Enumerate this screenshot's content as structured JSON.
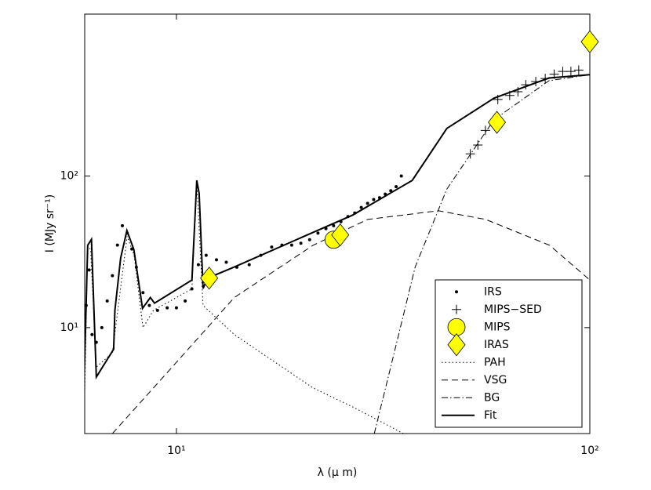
{
  "chart_data": {
    "type": "line",
    "xlabel": "λ (μ m)",
    "ylabel": "I (MJy sr⁻¹)",
    "log_x": true,
    "log_y": true,
    "xlim": [
      6,
      100
    ],
    "ylim": [
      2,
      1170
    ],
    "xticks": [
      {
        "value": 10,
        "label": "10¹"
      },
      {
        "value": 100,
        "label": "10²"
      }
    ],
    "yticks": [
      {
        "value": 10,
        "label": "10¹"
      },
      {
        "value": 100,
        "label": "10²"
      }
    ],
    "legend": "lower right",
    "series": [
      {
        "name": "IRS",
        "style": "dot",
        "color": "#000000",
        "x": [
          6.05,
          6.15,
          6.25,
          6.4,
          6.6,
          6.8,
          7.0,
          7.2,
          7.4,
          7.6,
          7.8,
          8.0,
          8.3,
          8.6,
          9.0,
          9.5,
          10.0,
          10.5,
          10.9,
          11.3,
          11.8,
          12.5,
          13.2,
          14,
          15,
          16,
          17,
          18,
          19,
          20,
          21,
          22,
          23,
          24,
          25,
          26,
          27,
          28,
          29,
          30,
          31,
          32,
          33,
          34,
          35
        ],
        "values": [
          14,
          24,
          9,
          8,
          10,
          15,
          22,
          35,
          47,
          42,
          33,
          25,
          17,
          14,
          13,
          13.5,
          13.5,
          15,
          18,
          26,
          30,
          28,
          27,
          25,
          26,
          30,
          34,
          35,
          35,
          36,
          38,
          42,
          45,
          47,
          50,
          54,
          57,
          62,
          66,
          70,
          72,
          76,
          80,
          85,
          100
        ]
      },
      {
        "name": "MIPS−SED",
        "style": "plus",
        "color": "#000000",
        "x": [
          51.4,
          53.6,
          55.9,
          59.9,
          64,
          67,
          70,
          74,
          78,
          82,
          86,
          90,
          94
        ],
        "values": [
          140,
          160,
          200,
          320,
          340,
          360,
          400,
          420,
          440,
          470,
          490,
          490,
          500
        ]
      },
      {
        "name": "MIPS",
        "style": "circle",
        "color": "#ffff00",
        "x": [
          24
        ],
        "values": [
          38
        ]
      },
      {
        "name": "IRAS",
        "style": "diamond",
        "color": "#ffff00",
        "x": [
          12,
          24.9,
          59.6,
          100
        ],
        "values": [
          21.2,
          40.9,
          226,
          769
        ]
      },
      {
        "name": "PAH",
        "style": "dotted",
        "color": "#000000",
        "x": [
          6,
          6.1,
          6.2,
          6.4,
          7.0,
          7.6,
          7.9,
          8.3,
          8.8,
          10.9,
          11.2,
          11.6,
          13.8,
          21.4,
          26.7,
          35.4
        ],
        "values": [
          3.7,
          34,
          33,
          5.5,
          6.8,
          40,
          30,
          10,
          13,
          18,
          90,
          14,
          9,
          4,
          3,
          2
        ]
      },
      {
        "name": "VSG",
        "style": "dashed",
        "color": "#000000",
        "x": [
          7.0,
          10,
          13.8,
          21.4,
          29,
          43,
          56,
          80,
          100
        ],
        "values": [
          2.0,
          5.9,
          15.8,
          34.9,
          51.7,
          59,
          51.7,
          34.9,
          20.6
        ]
      },
      {
        "name": "BG",
        "style": "dashdot",
        "color": "#000000",
        "x": [
          30.1,
          33.2,
          37.8,
          45.1,
          58.6,
          79.6,
          100
        ],
        "values": [
          2.0,
          5.9,
          25.1,
          82,
          235,
          425,
          466
        ]
      },
      {
        "name": "Fit",
        "style": "solid",
        "color": "#000000",
        "x": [
          5.97,
          6.1,
          6.23,
          6.4,
          7.05,
          7.1,
          7.33,
          7.59,
          7.89,
          8.28,
          8.65,
          8.85,
          10.9,
          11.2,
          11.35,
          11.6,
          11.9,
          13.8,
          21.4,
          26.7,
          37.2,
          45.1,
          58.6,
          79.6,
          100
        ],
        "values": [
          3.73,
          34.9,
          38.2,
          4.72,
          7.2,
          13.0,
          28.7,
          43.7,
          32.7,
          13.4,
          15.8,
          14.5,
          20.6,
          93.6,
          76.9,
          18.1,
          21.2,
          25.1,
          42.5,
          55.3,
          93.6,
          206,
          326,
          443,
          466
        ]
      }
    ]
  }
}
